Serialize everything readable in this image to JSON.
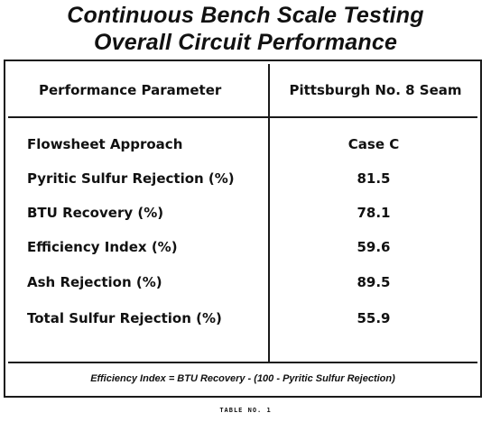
{
  "title": {
    "line1": "Continuous Bench Scale Testing",
    "line2": "Overall Circuit Performance"
  },
  "table": {
    "header": {
      "parameter": "Performance Parameter",
      "seam": "Pittsburgh No. 8 Seam"
    },
    "rows": [
      {
        "label": "Flowsheet Approach",
        "value": "Case C"
      },
      {
        "label": "Pyritic Sulfur Rejection (%)",
        "value": "81.5"
      },
      {
        "label": "BTU Recovery (%)",
        "value": "78.1"
      },
      {
        "label": "Efficiency Index (%)",
        "value": "59.6"
      },
      {
        "label": "Ash Rejection (%)",
        "value": "89.5"
      },
      {
        "label": "Total Sulfur Rejection (%)",
        "value": "55.9"
      }
    ],
    "footnote": "Efficiency Index = BTU Recovery - (100 - Pyritic Sulfur Rejection)"
  },
  "caption": "TABLE NO. 1"
}
